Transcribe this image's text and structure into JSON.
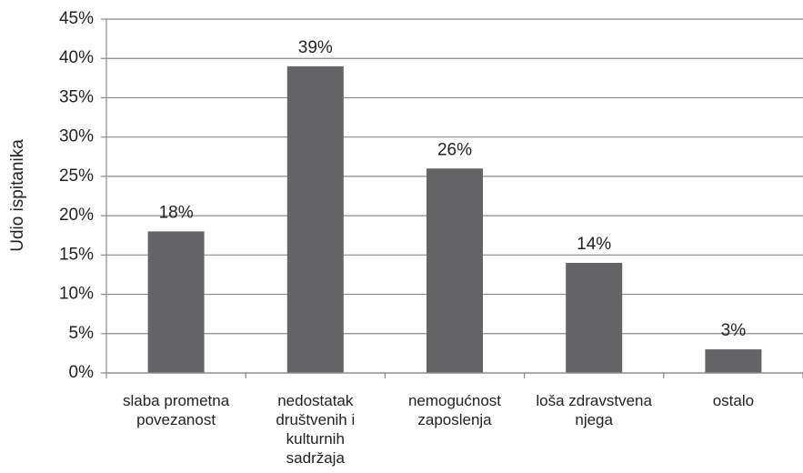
{
  "chart_data": {
    "type": "bar",
    "y_label": "Udio ispitanika",
    "categories": [
      "slaba prometna\npovezanost",
      "nedostatak\ndruštvenih i\nkulturnih\nsadržaja",
      "nemogućnost\nzaposlenja",
      "loša zdravstvena\nnjega",
      "ostalo"
    ],
    "values": [
      18,
      39,
      26,
      14,
      3
    ],
    "value_labels": [
      "18%",
      "39%",
      "26%",
      "14%",
      "3%"
    ],
    "color": "#646466",
    "ylim": [
      0,
      45
    ],
    "yticks": [
      {
        "value": 0,
        "label": "0%"
      },
      {
        "value": 5,
        "label": "5%"
      },
      {
        "value": 10,
        "label": "10%"
      },
      {
        "value": 15,
        "label": "15%"
      },
      {
        "value": 20,
        "label": "20%"
      },
      {
        "value": 25,
        "label": "25%"
      },
      {
        "value": 30,
        "label": "30%"
      },
      {
        "value": 35,
        "label": "35%"
      },
      {
        "value": 40,
        "label": "40%"
      },
      {
        "value": 45,
        "label": "45%"
      }
    ],
    "grid": true
  }
}
